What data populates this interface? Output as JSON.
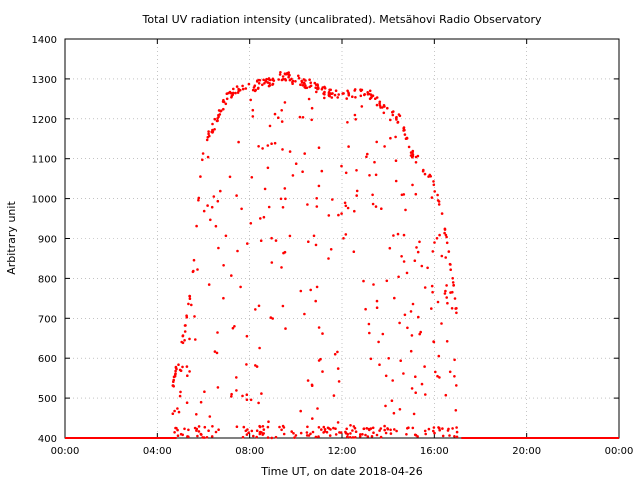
{
  "chart_data": {
    "type": "scatter",
    "title": "Total UV radiation intensity (uncalibrated). Metsähovi Radio Observatory",
    "xlabel": "Time UT, on date 2018-04-26",
    "ylabel": "Arbitrary unit",
    "xlim": [
      "00:00",
      "24:00"
    ],
    "ylim": [
      400,
      1400
    ],
    "x_ticks": [
      "00:00",
      "04:00",
      "08:00",
      "12:00",
      "16:00",
      "20:00",
      "00:00"
    ],
    "y_ticks": [
      400,
      500,
      600,
      700,
      800,
      900,
      1000,
      1100,
      1200,
      1300,
      1400
    ],
    "grid": true,
    "marker_color": "#ff0000",
    "envelope": {
      "description_x": [
        "04:40",
        "05:00",
        "05:30",
        "06:00",
        "06:30",
        "07:00",
        "07:30",
        "08:00",
        "08:30",
        "09:00",
        "09:30",
        "10:00",
        "10:30",
        "11:00",
        "11:30",
        "12:00",
        "12:30",
        "13:00",
        "13:30",
        "14:00",
        "14:30",
        "15:00",
        "15:30",
        "16:00",
        "16:30",
        "17:00"
      ],
      "max_y": [
        550,
        620,
        800,
        1150,
        1200,
        1265,
        1285,
        1290,
        1300,
        1310,
        1320,
        1310,
        1300,
        1290,
        1275,
        1270,
        1275,
        1280,
        1260,
        1225,
        1210,
        1130,
        1095,
        1050,
        920,
        720
      ]
    },
    "baseline": {
      "y": 400,
      "ranges": [
        [
          "00:00",
          "04:50"
        ],
        [
          "17:10",
          "24:00"
        ]
      ]
    }
  }
}
